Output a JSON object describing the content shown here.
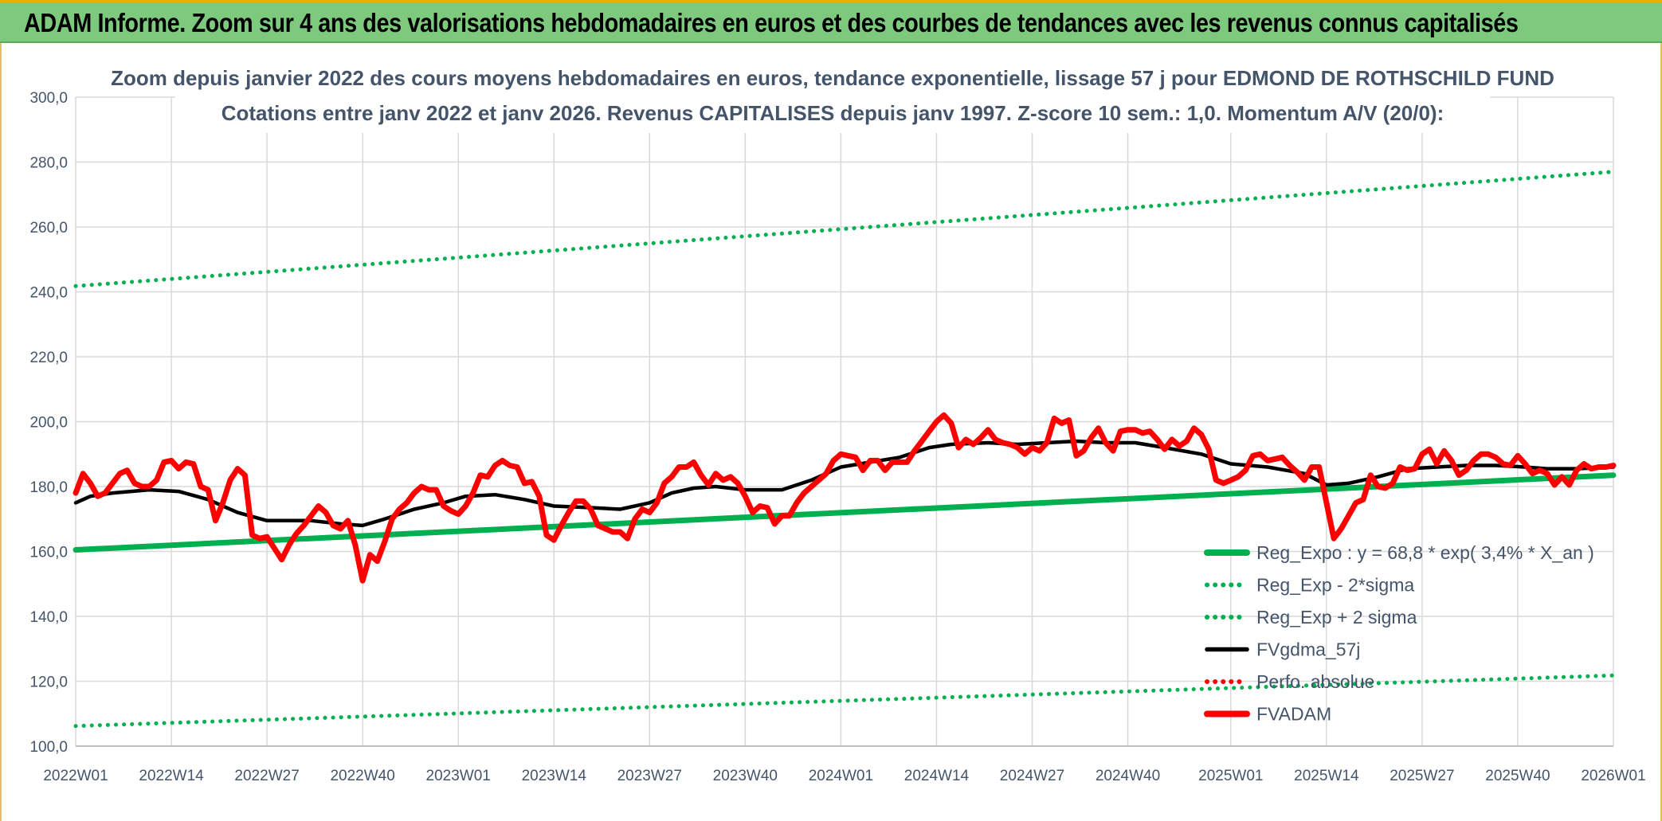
{
  "banner": {
    "title": "ADAM Informe. Zoom sur 4 ans des valorisations hebdomadaires en euros et des courbes de tendances avec les revenus connus capitalisés"
  },
  "chart_data": {
    "type": "line",
    "title_line1": "Zoom depuis janvier 2022 des cours moyens hebdomadaires en euros, tendance exponentielle, lissage 57 j pour EDMOND DE ROTHSCHILD FUND",
    "title_line2": "Cotations entre janv 2022 et janv 2026. Revenus CAPITALISES depuis janv 1997. Z-score 10 sem.: 1,0. Momentum A/V (20/0):",
    "ylim": [
      100,
      300
    ],
    "yticks": [
      "300,0",
      "280,0",
      "260,0",
      "240,0",
      "220,0",
      "200,0",
      "180,0",
      "160,0",
      "140,0",
      "120,0",
      "100,0"
    ],
    "xlim": [
      0,
      209
    ],
    "xticks": [
      {
        "label": "2022W01",
        "x": 0
      },
      {
        "label": "2022W14",
        "x": 13
      },
      {
        "label": "2022W27",
        "x": 26
      },
      {
        "label": "2022W40",
        "x": 39
      },
      {
        "label": "2023W01",
        "x": 52
      },
      {
        "label": "2023W14",
        "x": 65
      },
      {
        "label": "2023W27",
        "x": 78
      },
      {
        "label": "2023W40",
        "x": 91
      },
      {
        "label": "2024W01",
        "x": 104
      },
      {
        "label": "2024W14",
        "x": 117
      },
      {
        "label": "2024W27",
        "x": 130
      },
      {
        "label": "2024W40",
        "x": 143
      },
      {
        "label": "2025W01",
        "x": 157
      },
      {
        "label": "2025W14",
        "x": 170
      },
      {
        "label": "2025W27",
        "x": 183
      },
      {
        "label": "2025W40",
        "x": 196
      },
      {
        "label": "2026W01",
        "x": 209
      }
    ],
    "series": [
      {
        "name": "Reg_Expo : y = 68,8 * exp( 3,4% *  X_an )",
        "color": "#00b050",
        "style": "solid-thick",
        "points": [
          [
            0,
            160.5
          ],
          [
            209,
            183.5
          ]
        ]
      },
      {
        "name": "Reg_Exp - 2*sigma",
        "color": "#00b050",
        "style": "dotted",
        "points": [
          [
            0,
            106.2
          ],
          [
            209,
            121.8
          ]
        ]
      },
      {
        "name": "Reg_Exp + 2 sigma",
        "color": "#00b050",
        "style": "dotted",
        "points": [
          [
            0,
            241.8
          ],
          [
            209,
            277.0
          ]
        ]
      },
      {
        "name": "FVgdma_57j",
        "color": "#000000",
        "style": "solid",
        "points": [
          [
            0,
            175
          ],
          [
            2,
            177
          ],
          [
            5,
            178
          ],
          [
            10,
            179
          ],
          [
            14,
            178.5
          ],
          [
            18,
            176
          ],
          [
            22,
            172
          ],
          [
            26,
            169.5
          ],
          [
            32,
            169.5
          ],
          [
            36,
            168.5
          ],
          [
            39,
            168
          ],
          [
            42,
            170
          ],
          [
            46,
            173
          ],
          [
            50,
            175
          ],
          [
            53,
            177
          ],
          [
            57,
            177.5
          ],
          [
            61,
            176
          ],
          [
            65,
            174
          ],
          [
            70,
            173.5
          ],
          [
            74,
            173
          ],
          [
            78,
            175
          ],
          [
            81,
            178
          ],
          [
            84,
            179.5
          ],
          [
            87,
            180
          ],
          [
            91,
            179
          ],
          [
            96,
            179
          ],
          [
            100,
            182
          ],
          [
            104,
            186
          ],
          [
            108,
            187.5
          ],
          [
            112,
            189
          ],
          [
            116,
            192
          ],
          [
            119,
            193
          ],
          [
            124,
            193.5
          ],
          [
            128,
            193
          ],
          [
            132,
            193.5
          ],
          [
            136,
            194
          ],
          [
            140,
            193.5
          ],
          [
            144,
            193.5
          ],
          [
            148,
            192
          ],
          [
            153,
            190
          ],
          [
            157,
            187
          ],
          [
            162,
            186
          ],
          [
            167,
            184
          ],
          [
            170,
            180.5
          ],
          [
            173,
            181
          ],
          [
            177,
            183
          ],
          [
            181,
            185.5
          ],
          [
            185,
            186
          ],
          [
            189,
            186.5
          ],
          [
            193,
            186.5
          ],
          [
            197,
            186
          ],
          [
            200,
            185.5
          ],
          [
            204,
            185.5
          ],
          [
            209,
            186
          ]
        ]
      },
      {
        "name": "Perfo. absolue",
        "color": "#ff0000",
        "style": "dotted",
        "points": []
      },
      {
        "name": "FVADAM",
        "color": "#ff0000",
        "style": "solid-thick",
        "points": [
          [
            0,
            178
          ],
          [
            1,
            184
          ],
          [
            2,
            181
          ],
          [
            3,
            177
          ],
          [
            4,
            178
          ],
          [
            5,
            181
          ],
          [
            6,
            184
          ],
          [
            7,
            185
          ],
          [
            8,
            181
          ],
          [
            9,
            180
          ],
          [
            10,
            180
          ],
          [
            11,
            182
          ],
          [
            12,
            187.5
          ],
          [
            13,
            188
          ],
          [
            14,
            185.5
          ],
          [
            15,
            187.5
          ],
          [
            16,
            187
          ],
          [
            17,
            180
          ],
          [
            18,
            179
          ],
          [
            19,
            169.5
          ],
          [
            20,
            175
          ],
          [
            21,
            182
          ],
          [
            22,
            185.5
          ],
          [
            23,
            183.5
          ],
          [
            24,
            165
          ],
          [
            25,
            164
          ],
          [
            26,
            164.5
          ],
          [
            27,
            161
          ],
          [
            28,
            157.5
          ],
          [
            29,
            162
          ],
          [
            30,
            165.5
          ],
          [
            31,
            168
          ],
          [
            32,
            171
          ],
          [
            33,
            174
          ],
          [
            34,
            172
          ],
          [
            35,
            168
          ],
          [
            36,
            167
          ],
          [
            37,
            169.5
          ],
          [
            38,
            162
          ],
          [
            39,
            151
          ],
          [
            40,
            159
          ],
          [
            41,
            157
          ],
          [
            42,
            163
          ],
          [
            43,
            170
          ],
          [
            44,
            173
          ],
          [
            45,
            175
          ],
          [
            46,
            178
          ],
          [
            47,
            180
          ],
          [
            48,
            179
          ],
          [
            49,
            179
          ],
          [
            50,
            174
          ],
          [
            51,
            172.5
          ],
          [
            52,
            171.5
          ],
          [
            53,
            174
          ],
          [
            54,
            178
          ],
          [
            55,
            183.5
          ],
          [
            56,
            183
          ],
          [
            57,
            186.5
          ],
          [
            58,
            188
          ],
          [
            59,
            186.5
          ],
          [
            60,
            186
          ],
          [
            61,
            181
          ],
          [
            62,
            181.5
          ],
          [
            63,
            177
          ],
          [
            64,
            165
          ],
          [
            65,
            163.5
          ],
          [
            66,
            168
          ],
          [
            67,
            172
          ],
          [
            68,
            175.5
          ],
          [
            69,
            175.5
          ],
          [
            70,
            173
          ],
          [
            71,
            168
          ],
          [
            72,
            167
          ],
          [
            73,
            166
          ],
          [
            74,
            166
          ],
          [
            75,
            164
          ],
          [
            76,
            170
          ],
          [
            77,
            173
          ],
          [
            78,
            172
          ],
          [
            79,
            175
          ],
          [
            80,
            181
          ],
          [
            81,
            183
          ],
          [
            82,
            186
          ],
          [
            83,
            186
          ],
          [
            84,
            187.5
          ],
          [
            85,
            183.5
          ],
          [
            86,
            180.5
          ],
          [
            87,
            184
          ],
          [
            88,
            182
          ],
          [
            89,
            183
          ],
          [
            90,
            181
          ],
          [
            91,
            177
          ],
          [
            92,
            172
          ],
          [
            93,
            174
          ],
          [
            94,
            173.5
          ],
          [
            95,
            168.5
          ],
          [
            96,
            171
          ],
          [
            97,
            171
          ],
          [
            98,
            175
          ],
          [
            99,
            178
          ],
          [
            100,
            180
          ],
          [
            101,
            182
          ],
          [
            102,
            184
          ],
          [
            103,
            188
          ],
          [
            104,
            190
          ],
          [
            105,
            189.5
          ],
          [
            106,
            189
          ],
          [
            107,
            185
          ],
          [
            108,
            188
          ],
          [
            109,
            188
          ],
          [
            110,
            185
          ],
          [
            111,
            187.5
          ],
          [
            112,
            187.5
          ],
          [
            113,
            187.5
          ],
          [
            114,
            191
          ],
          [
            115,
            194
          ],
          [
            116,
            197
          ],
          [
            117,
            200
          ],
          [
            118,
            202
          ],
          [
            119,
            199.5
          ],
          [
            120,
            192
          ],
          [
            121,
            194.5
          ],
          [
            122,
            193
          ],
          [
            123,
            195
          ],
          [
            124,
            197.5
          ],
          [
            125,
            194.5
          ],
          [
            126,
            193.5
          ],
          [
            127,
            193
          ],
          [
            128,
            192
          ],
          [
            129,
            190
          ],
          [
            130,
            192
          ],
          [
            131,
            191
          ],
          [
            132,
            193.5
          ],
          [
            133,
            201
          ],
          [
            134,
            199.5
          ],
          [
            135,
            200.5
          ],
          [
            136,
            189.5
          ],
          [
            137,
            191
          ],
          [
            138,
            195
          ],
          [
            139,
            198
          ],
          [
            140,
            193.5
          ],
          [
            141,
            191
          ],
          [
            142,
            197
          ],
          [
            143,
            197.5
          ],
          [
            144,
            197.5
          ],
          [
            145,
            196.5
          ],
          [
            146,
            197
          ],
          [
            147,
            194.5
          ],
          [
            148,
            191.5
          ],
          [
            149,
            194.5
          ],
          [
            150,
            192.5
          ],
          [
            151,
            194
          ],
          [
            152,
            198
          ],
          [
            153,
            196
          ],
          [
            154,
            191.5
          ],
          [
            155,
            182
          ],
          [
            156,
            181
          ],
          [
            157,
            182
          ],
          [
            158,
            183
          ],
          [
            159,
            185
          ],
          [
            160,
            189.5
          ],
          [
            161,
            190
          ],
          [
            162,
            188
          ],
          [
            163,
            188.5
          ],
          [
            164,
            189
          ],
          [
            165,
            186.5
          ],
          [
            166,
            184.5
          ],
          [
            167,
            182
          ],
          [
            168,
            186
          ],
          [
            169,
            186
          ],
          [
            170,
            175
          ],
          [
            171,
            164
          ],
          [
            172,
            167
          ],
          [
            173,
            171
          ],
          [
            174,
            175
          ],
          [
            175,
            176
          ],
          [
            176,
            183.5
          ],
          [
            177,
            180
          ],
          [
            178,
            179.5
          ],
          [
            179,
            181
          ],
          [
            180,
            186
          ],
          [
            181,
            185
          ],
          [
            182,
            185.5
          ],
          [
            183,
            190
          ],
          [
            184,
            191.5
          ],
          [
            185,
            187
          ],
          [
            186,
            191
          ],
          [
            187,
            188
          ],
          [
            188,
            183.5
          ],
          [
            189,
            185
          ],
          [
            190,
            188
          ],
          [
            191,
            190
          ],
          [
            192,
            190
          ],
          [
            193,
            189
          ],
          [
            194,
            187
          ],
          [
            195,
            186.5
          ],
          [
            196,
            189.5
          ],
          [
            197,
            187
          ],
          [
            198,
            184
          ],
          [
            199,
            185
          ],
          [
            200,
            184
          ],
          [
            201,
            180.5
          ],
          [
            202,
            183
          ],
          [
            203,
            180.5
          ],
          [
            204,
            185
          ],
          [
            205,
            187
          ],
          [
            206,
            185.5
          ],
          [
            207,
            186
          ],
          [
            208,
            186
          ],
          [
            209,
            186.5
          ]
        ]
      }
    ]
  }
}
